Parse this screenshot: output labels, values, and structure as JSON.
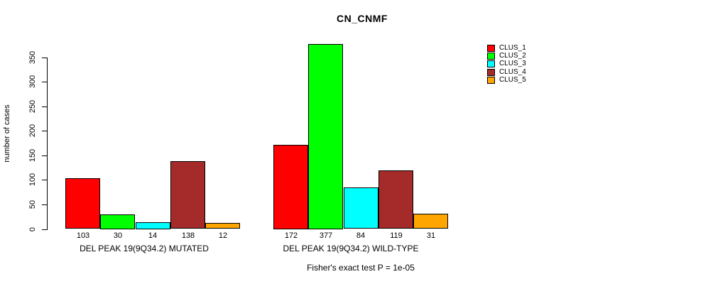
{
  "chart_data": {
    "type": "bar",
    "title": "CN_CNMF",
    "ylabel": "number of cases",
    "xlabel": "",
    "ylim": [
      0,
      350
    ],
    "yticks": [
      0,
      50,
      100,
      150,
      200,
      250,
      300,
      350
    ],
    "grid": false,
    "legend_position": "right",
    "bar_borders": true,
    "categories": [
      "DEL PEAK 19(9Q34.2) MUTATED",
      "DEL PEAK 19(9Q34.2) WILD-TYPE"
    ],
    "series": [
      {
        "name": "CLUS_1",
        "color": "#ff0000",
        "values": [
          103,
          172
        ]
      },
      {
        "name": "CLUS_2",
        "color": "#00ff00",
        "values": [
          30,
          377
        ]
      },
      {
        "name": "CLUS_3",
        "color": "#00ffff",
        "values": [
          14,
          84
        ]
      },
      {
        "name": "CLUS_4",
        "color": "#a52a2a",
        "values": [
          138,
          119
        ]
      },
      {
        "name": "CLUS_5",
        "color": "#ffa500",
        "values": [
          12,
          31
        ]
      }
    ],
    "bar_value_labels": [
      [
        "103",
        "30",
        "14",
        "138",
        "12"
      ],
      [
        "172",
        "377",
        "84",
        "119",
        "31"
      ]
    ],
    "footnote": "Fisher's exact test P = 1e-05"
  }
}
